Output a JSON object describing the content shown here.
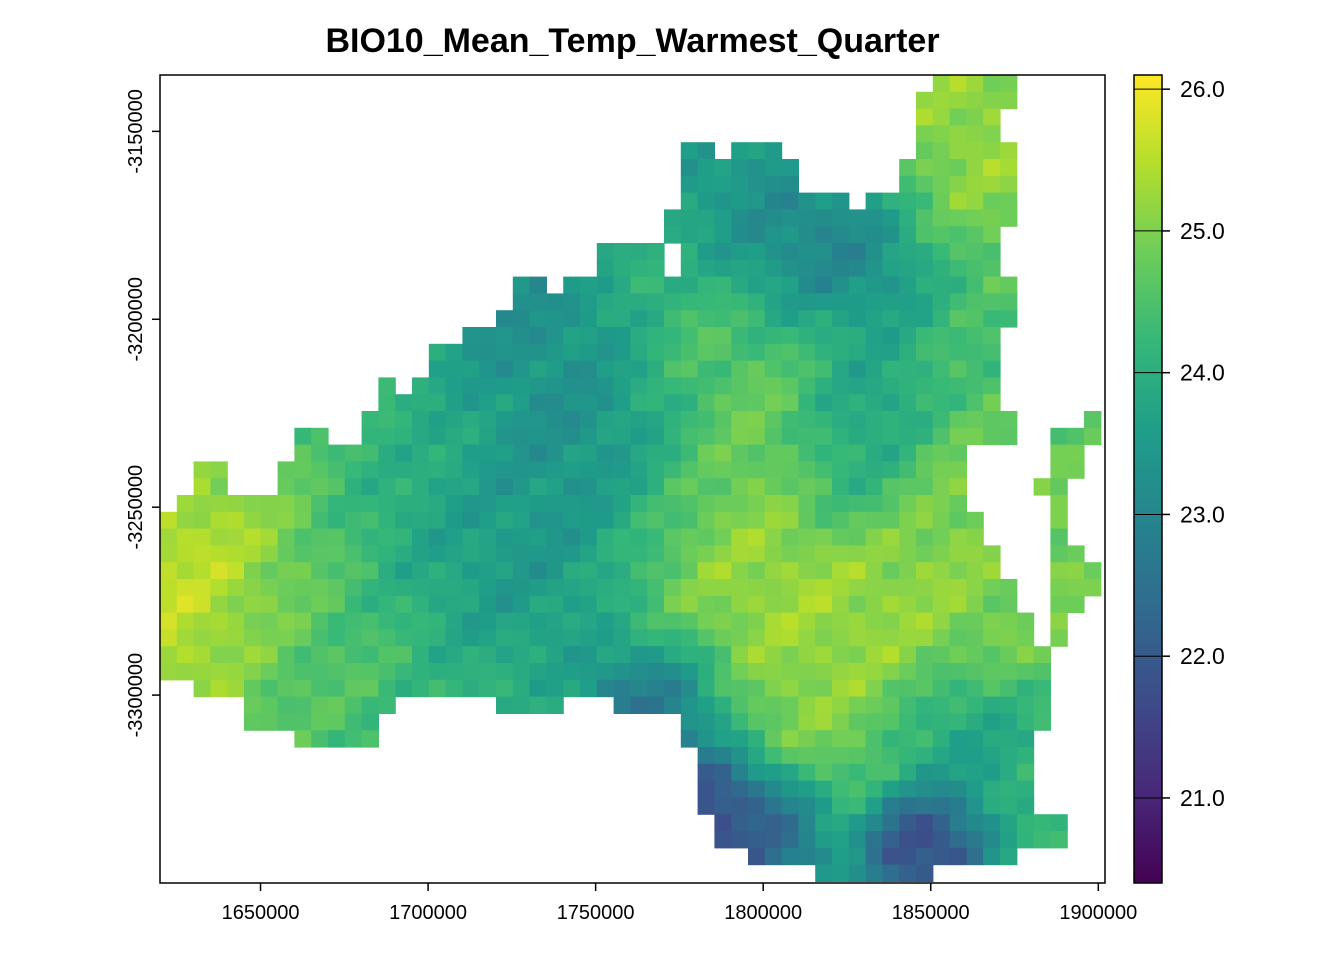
{
  "title": "BIO10_Mean_Temp_Warmest_Quarter",
  "x_axis": {
    "range": [
      1620000,
      1902000
    ],
    "ticks": [
      1650000,
      1700000,
      1750000,
      1800000,
      1850000,
      1900000
    ],
    "tick_labels": [
      "1650000",
      "1700000",
      "1750000",
      "1800000",
      "1850000",
      "1900000"
    ]
  },
  "y_axis": {
    "range": [
      -3350000,
      -3135000
    ],
    "ticks": [
      -3150000,
      -3200000,
      -3250000,
      -3300000
    ],
    "tick_labels": [
      "-3150000",
      "-3200000",
      "-3250000",
      "-3300000"
    ]
  },
  "legend": {
    "type": "continuous colorbar",
    "position": "right",
    "range": [
      20.4,
      26.1
    ],
    "ticks": [
      21.0,
      22.0,
      23.0,
      24.0,
      25.0,
      26.0
    ],
    "tick_labels": [
      "21.0",
      "22.0",
      "23.0",
      "24.0",
      "25.0",
      "26.0"
    ],
    "palette": "viridis"
  },
  "colors": {
    "viridis": [
      "#440154",
      "#482878",
      "#3E4A89",
      "#31688E",
      "#26828E",
      "#1F9E89",
      "#35B779",
      "#6DCD59",
      "#B4DE2C",
      "#FDE725"
    ]
  }
}
